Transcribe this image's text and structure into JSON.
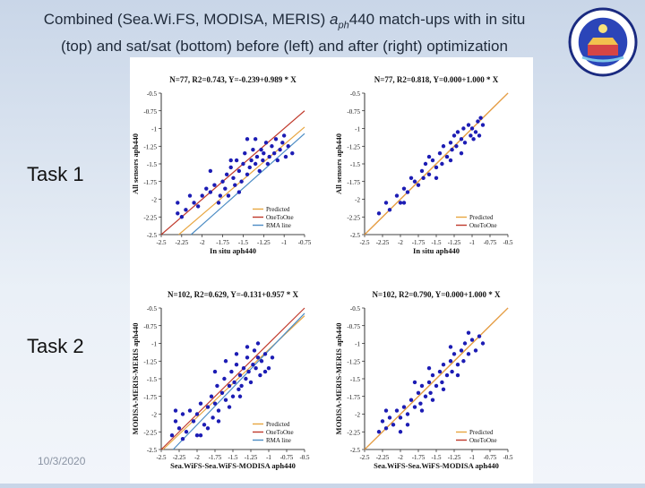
{
  "title": {
    "line1_prefix": "Combined (Sea.Wi.FS, MODISA, MERIS) ",
    "line1_var": "a",
    "line1_sub": "ph",
    "line1_suffix": "440 match-ups with in situ",
    "line2": "(top) and sat/sat (bottom) before (left) and after (right) optimization"
  },
  "task_labels": [
    "Task 1",
    "Task 2"
  ],
  "date": "10/3/2020",
  "colors": {
    "points": "#1c1cb4",
    "predicted": "#e8a640",
    "one_to_one": "#c0392b",
    "rma": "#4c8cc4",
    "logo_ring": "#1a2a80"
  },
  "logo": {
    "icon": "seal-emblem-icon"
  },
  "chart_data": [
    {
      "type": "scatter",
      "title": "N=77, R2=0.743, Y=-0.239+0.989 * X",
      "xlabel": "In situ aph440",
      "ylabel": "All sensors aph440",
      "xlim": [
        -2.5,
        -0.75
      ],
      "ylim": [
        -2.5,
        -0.5
      ],
      "xticks": [
        "-2.5",
        "-2.25",
        "-2",
        "-1.75",
        "-1.5",
        "-1.25",
        "-1",
        "-0.75"
      ],
      "yticks": [
        "-0.5",
        "-0.75",
        "-1",
        "-1.25",
        "-1.5",
        "-1.75",
        "-2",
        "-2.25",
        "-2.5"
      ],
      "legend": [
        "Predicted",
        "OneToOne",
        "RMA line"
      ],
      "legend_position": "bottom-right",
      "lines": {
        "predicted": {
          "intercept": -0.239,
          "slope": 0.989
        },
        "one_to_one": {
          "intercept": 0,
          "slope": 1
        },
        "rma": {
          "intercept": -0.3,
          "slope": 1.03
        }
      },
      "points": [
        [
          -2.3,
          -2.2
        ],
        [
          -2.3,
          -2.05
        ],
        [
          -2.2,
          -2.15
        ],
        [
          -2.15,
          -1.95
        ],
        [
          -2.1,
          -2.05
        ],
        [
          -2.05,
          -2.1
        ],
        [
          -2.0,
          -1.95
        ],
        [
          -1.95,
          -1.85
        ],
        [
          -1.9,
          -1.9
        ],
        [
          -1.85,
          -1.8
        ],
        [
          -1.8,
          -2.05
        ],
        [
          -1.78,
          -1.95
        ],
        [
          -1.75,
          -1.75
        ],
        [
          -1.72,
          -1.85
        ],
        [
          -1.7,
          -1.65
        ],
        [
          -1.68,
          -1.95
        ],
        [
          -1.65,
          -1.55
        ],
        [
          -1.62,
          -1.7
        ],
        [
          -1.6,
          -1.8
        ],
        [
          -1.58,
          -1.45
        ],
        [
          -1.55,
          -1.6
        ],
        [
          -1.52,
          -1.75
        ],
        [
          -1.5,
          -1.5
        ],
        [
          -1.48,
          -1.35
        ],
        [
          -1.45,
          -1.65
        ],
        [
          -1.42,
          -1.55
        ],
        [
          -1.4,
          -1.45
        ],
        [
          -1.38,
          -1.3
        ],
        [
          -1.35,
          -1.5
        ],
        [
          -1.33,
          -1.4
        ],
        [
          -1.3,
          -1.6
        ],
        [
          -1.28,
          -1.3
        ],
        [
          -1.26,
          -1.45
        ],
        [
          -1.25,
          -1.35
        ],
        [
          -1.22,
          -1.2
        ],
        [
          -1.2,
          -1.5
        ],
        [
          -1.18,
          -1.4
        ],
        [
          -1.15,
          -1.25
        ],
        [
          -1.12,
          -1.35
        ],
        [
          -1.1,
          -1.15
        ],
        [
          -1.08,
          -1.45
        ],
        [
          -1.05,
          -1.3
        ],
        [
          -1.02,
          -1.2
        ],
        [
          -1.0,
          -1.1
        ],
        [
          -0.98,
          -1.4
        ],
        [
          -0.95,
          -1.25
        ],
        [
          -0.9,
          -1.35
        ],
        [
          -1.9,
          -1.6
        ],
        [
          -1.65,
          -1.45
        ],
        [
          -1.45,
          -1.15
        ],
        [
          -1.35,
          -1.15
        ],
        [
          -2.25,
          -2.25
        ],
        [
          -1.55,
          -1.9
        ]
      ]
    },
    {
      "type": "scatter",
      "title": "N=77, R2=0.818, Y=0.000+1.000 * X",
      "xlabel": "In situ aph440",
      "ylabel": "All sensors aph440",
      "xlim": [
        -2.5,
        -0.5
      ],
      "ylim": [
        -2.5,
        -0.5
      ],
      "xticks": [
        "-2.5",
        "-2.25",
        "-2",
        "-1.75",
        "-1.5",
        "-1.25",
        "-1",
        "-0.75",
        "-0.5"
      ],
      "yticks": [
        "-0.5",
        "-0.75",
        "-1",
        "-1.25",
        "-1.5",
        "-1.75",
        "-2",
        "-2.25",
        "-2.5"
      ],
      "legend": [
        "Predicted",
        "OneToOne"
      ],
      "legend_position": "bottom-right",
      "lines": {
        "predicted": {
          "intercept": 0.0,
          "slope": 1.0
        },
        "one_to_one": {
          "intercept": 0,
          "slope": 1
        }
      },
      "points": [
        [
          -2.3,
          -2.2
        ],
        [
          -2.2,
          -2.05
        ],
        [
          -2.15,
          -2.15
        ],
        [
          -2.05,
          -1.95
        ],
        [
          -2.0,
          -2.05
        ],
        [
          -1.95,
          -1.85
        ],
        [
          -1.9,
          -1.9
        ],
        [
          -1.85,
          -1.7
        ],
        [
          -1.8,
          -1.75
        ],
        [
          -1.75,
          -1.8
        ],
        [
          -1.7,
          -1.6
        ],
        [
          -1.68,
          -1.7
        ],
        [
          -1.65,
          -1.5
        ],
        [
          -1.6,
          -1.65
        ],
        [
          -1.55,
          -1.45
        ],
        [
          -1.5,
          -1.55
        ],
        [
          -1.45,
          -1.35
        ],
        [
          -1.42,
          -1.5
        ],
        [
          -1.4,
          -1.25
        ],
        [
          -1.35,
          -1.4
        ],
        [
          -1.3,
          -1.2
        ],
        [
          -1.28,
          -1.3
        ],
        [
          -1.25,
          -1.1
        ],
        [
          -1.22,
          -1.25
        ],
        [
          -1.2,
          -1.05
        ],
        [
          -1.15,
          -1.15
        ],
        [
          -1.12,
          -1.0
        ],
        [
          -1.1,
          -1.2
        ],
        [
          -1.05,
          -0.95
        ],
        [
          -1.02,
          -1.1
        ],
        [
          -1.0,
          -1.0
        ],
        [
          -0.95,
          -1.05
        ],
        [
          -0.92,
          -0.9
        ],
        [
          -0.9,
          -1.1
        ],
        [
          -0.88,
          -0.85
        ],
        [
          -0.85,
          -0.95
        ],
        [
          -1.6,
          -1.4
        ],
        [
          -1.3,
          -1.45
        ],
        [
          -1.5,
          -1.7
        ],
        [
          -1.95,
          -2.05
        ],
        [
          -1.15,
          -1.35
        ],
        [
          -0.98,
          -1.15
        ]
      ]
    },
    {
      "type": "scatter",
      "title": "N=102, R2=0.629, Y=-0.131+0.957 * X",
      "xlabel": "Sea.WiFS-Sea.WiFS-MODISA aph440",
      "ylabel": "MODISA-MERIS-MERIS aph440",
      "xlim": [
        -2.5,
        -0.5
      ],
      "ylim": [
        -2.5,
        -0.5
      ],
      "xticks": [
        "-2.5",
        "-2.25",
        "-2",
        "-1.75",
        "-1.5",
        "-1.25",
        "-1",
        "-0.75",
        "-0.5"
      ],
      "yticks": [
        "-0.5",
        "-0.75",
        "-1",
        "-1.25",
        "-1.5",
        "-1.75",
        "-2",
        "-2.25",
        "-2.5"
      ],
      "legend": [
        "Predicted",
        "OneToOne",
        "RMA line"
      ],
      "legend_position": "bottom-right",
      "lines": {
        "predicted": {
          "intercept": -0.131,
          "slope": 0.957
        },
        "one_to_one": {
          "intercept": 0,
          "slope": 1
        },
        "rma": {
          "intercept": -0.05,
          "slope": 1.05
        }
      },
      "points": [
        [
          -2.35,
          -2.3
        ],
        [
          -2.3,
          -2.1
        ],
        [
          -2.25,
          -2.2
        ],
        [
          -2.2,
          -2.0
        ],
        [
          -2.15,
          -2.25
        ],
        [
          -2.1,
          -1.95
        ],
        [
          -2.05,
          -2.1
        ],
        [
          -2.0,
          -2.0
        ],
        [
          -1.95,
          -1.85
        ],
        [
          -1.9,
          -2.15
        ],
        [
          -1.85,
          -1.9
        ],
        [
          -1.8,
          -1.75
        ],
        [
          -1.78,
          -2.05
        ],
        [
          -1.75,
          -1.85
        ],
        [
          -1.72,
          -1.6
        ],
        [
          -1.7,
          -1.95
        ],
        [
          -1.65,
          -1.7
        ],
        [
          -1.62,
          -1.5
        ],
        [
          -1.6,
          -1.8
        ],
        [
          -1.55,
          -1.6
        ],
        [
          -1.52,
          -1.4
        ],
        [
          -1.5,
          -1.75
        ],
        [
          -1.48,
          -1.55
        ],
        [
          -1.45,
          -1.3
        ],
        [
          -1.42,
          -1.65
        ],
        [
          -1.4,
          -1.45
        ],
        [
          -1.38,
          -1.6
        ],
        [
          -1.35,
          -1.35
        ],
        [
          -1.32,
          -1.5
        ],
        [
          -1.3,
          -1.2
        ],
        [
          -1.28,
          -1.4
        ],
        [
          -1.25,
          -1.55
        ],
        [
          -1.22,
          -1.3
        ],
        [
          -1.2,
          -1.1
        ],
        [
          -1.18,
          -1.35
        ],
        [
          -1.15,
          -1.2
        ],
        [
          -1.12,
          -1.45
        ],
        [
          -1.1,
          -1.25
        ],
        [
          -1.05,
          -1.15
        ],
        [
          -1.0,
          -1.35
        ],
        [
          -0.95,
          -1.2
        ],
        [
          -2.0,
          -2.3
        ],
        [
          -1.85,
          -2.2
        ],
        [
          -1.7,
          -2.1
        ],
        [
          -2.2,
          -2.35
        ],
        [
          -1.6,
          -1.25
        ],
        [
          -1.45,
          -1.15
        ],
        [
          -1.3,
          -1.05
        ],
        [
          -2.3,
          -1.95
        ],
        [
          -1.95,
          -2.3
        ],
        [
          -1.75,
          -1.4
        ],
        [
          -1.55,
          -1.9
        ],
        [
          -1.4,
          -1.75
        ],
        [
          -1.15,
          -1.0
        ],
        [
          -1.05,
          -1.4
        ]
      ]
    },
    {
      "type": "scatter",
      "title": "N=102, R2=0.790, Y=0.000+1.000 * X",
      "xlabel": "Sea.WiFS-Sea.WiFS-MODISA aph440",
      "ylabel": "MODISA-MERIS-MERIS aph440",
      "xlim": [
        -2.5,
        -0.5
      ],
      "ylim": [
        -2.5,
        -0.5
      ],
      "xticks": [
        "-2.5",
        "-2.25",
        "-2",
        "-1.75",
        "-1.5",
        "-1.25",
        "-1",
        "-0.75",
        "-0.5"
      ],
      "yticks": [
        "-0.5",
        "-0.75",
        "-1",
        "-1.25",
        "-1.5",
        "-1.75",
        "-2",
        "-2.25",
        "-2.5"
      ],
      "legend": [
        "Predicted",
        "OneToOne"
      ],
      "legend_position": "bottom-right",
      "lines": {
        "predicted": {
          "intercept": 0.0,
          "slope": 1.0
        },
        "one_to_one": {
          "intercept": 0,
          "slope": 1
        }
      },
      "points": [
        [
          -2.3,
          -2.25
        ],
        [
          -2.25,
          -2.1
        ],
        [
          -2.2,
          -2.2
        ],
        [
          -2.15,
          -2.05
        ],
        [
          -2.1,
          -2.15
        ],
        [
          -2.05,
          -1.95
        ],
        [
          -2.0,
          -2.05
        ],
        [
          -1.95,
          -1.9
        ],
        [
          -1.9,
          -2.0
        ],
        [
          -1.85,
          -1.8
        ],
        [
          -1.8,
          -1.9
        ],
        [
          -1.75,
          -1.7
        ],
        [
          -1.72,
          -1.85
        ],
        [
          -1.7,
          -1.6
        ],
        [
          -1.65,
          -1.75
        ],
        [
          -1.6,
          -1.55
        ],
        [
          -1.58,
          -1.7
        ],
        [
          -1.55,
          -1.45
        ],
        [
          -1.5,
          -1.6
        ],
        [
          -1.45,
          -1.4
        ],
        [
          -1.42,
          -1.55
        ],
        [
          -1.4,
          -1.3
        ],
        [
          -1.35,
          -1.45
        ],
        [
          -1.3,
          -1.25
        ],
        [
          -1.28,
          -1.4
        ],
        [
          -1.25,
          -1.15
        ],
        [
          -1.2,
          -1.3
        ],
        [
          -1.15,
          -1.1
        ],
        [
          -1.12,
          -1.25
        ],
        [
          -1.1,
          -1.0
        ],
        [
          -1.05,
          -1.15
        ],
        [
          -1.0,
          -0.95
        ],
        [
          -0.95,
          -1.1
        ],
        [
          -0.9,
          -0.9
        ],
        [
          -0.85,
          -1.0
        ],
        [
          -2.0,
          -2.25
        ],
        [
          -1.9,
          -2.15
        ],
        [
          -1.6,
          -1.35
        ],
        [
          -1.4,
          -1.65
        ],
        [
          -1.2,
          -1.45
        ],
        [
          -1.7,
          -1.95
        ],
        [
          -1.3,
          -1.05
        ],
        [
          -2.2,
          -1.95
        ],
        [
          -1.8,
          -1.55
        ],
        [
          -1.55,
          -1.8
        ],
        [
          -1.05,
          -0.85
        ]
      ]
    }
  ]
}
